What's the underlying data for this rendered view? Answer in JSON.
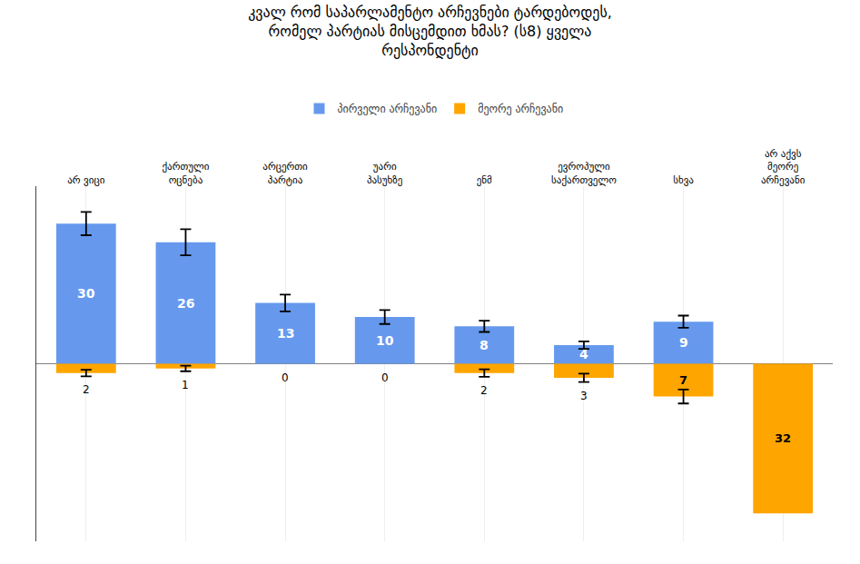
{
  "chart_data": {
    "type": "bar",
    "title": "კვალ რომ საპარლამენტო არჩევნები ტარდებოდეს,\nრომელ პარტიას მისცემდით ხმას? (ს8) ყველა\nრესპონდენტი",
    "categories": [
      "არ ვიცი",
      "ქართული\nოცნება",
      "არცერთი\nპარტია",
      "უარი\nპასუხზე",
      "ენმ",
      "ევროპული\nსაქართველო",
      "სხვა",
      "არ აქვს\nმეორე\nარჩევანი"
    ],
    "series": [
      {
        "name": "პირველი არჩევანი",
        "color": "#6699EE",
        "values": [
          30,
          26,
          13,
          10,
          8,
          4,
          9,
          0
        ],
        "errors": [
          2.5,
          2.8,
          1.8,
          1.5,
          1.2,
          0.8,
          1.3,
          0
        ]
      },
      {
        "name": "მეორე არჩევანი",
        "color": "#FFA500",
        "values": [
          2,
          1,
          0,
          0,
          2,
          3,
          7,
          32
        ],
        "errors": [
          0.7,
          0.6,
          0,
          0,
          0.8,
          0.9,
          1.5,
          0
        ]
      }
    ],
    "ylim": [
      -38,
      38
    ],
    "yticks": [],
    "grid": true,
    "legend": "top",
    "data_labels": true,
    "tick_labels": "x"
  }
}
